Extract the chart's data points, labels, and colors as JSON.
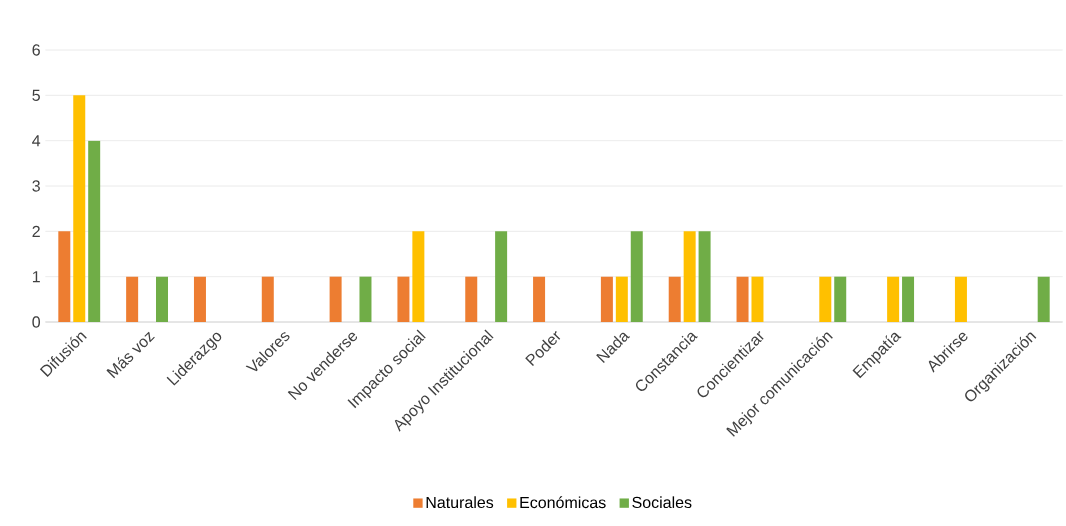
{
  "chart_data": {
    "type": "bar",
    "categories": [
      "Difusión",
      "Más voz",
      "Liderazgo",
      "Valores",
      "No venderse",
      "Impacto social",
      "Apoyo Institucional",
      "Poder",
      "Nada",
      "Constancia",
      "Concientizar",
      "Mejor comunicación",
      "Empatía",
      "Abrirse",
      "Organización"
    ],
    "series": [
      {
        "name": "Naturales",
        "color": "#ed7d31",
        "values": [
          2,
          1,
          1,
          1,
          1,
          1,
          1,
          1,
          1,
          1,
          1,
          null,
          null,
          null,
          null
        ]
      },
      {
        "name": "Económicas",
        "color": "#ffc000",
        "values": [
          5,
          null,
          null,
          null,
          null,
          2,
          null,
          null,
          1,
          2,
          1,
          1,
          1,
          1,
          null
        ]
      },
      {
        "name": "Sociales",
        "color": "#70ad47",
        "values": [
          4,
          1,
          null,
          null,
          1,
          null,
          2,
          null,
          2,
          2,
          null,
          1,
          1,
          null,
          1
        ]
      }
    ],
    "ylim": [
      0,
      6
    ],
    "yticks": [
      0,
      1,
      2,
      3,
      4,
      5,
      6
    ],
    "grid": "y",
    "legend": "bottom"
  }
}
